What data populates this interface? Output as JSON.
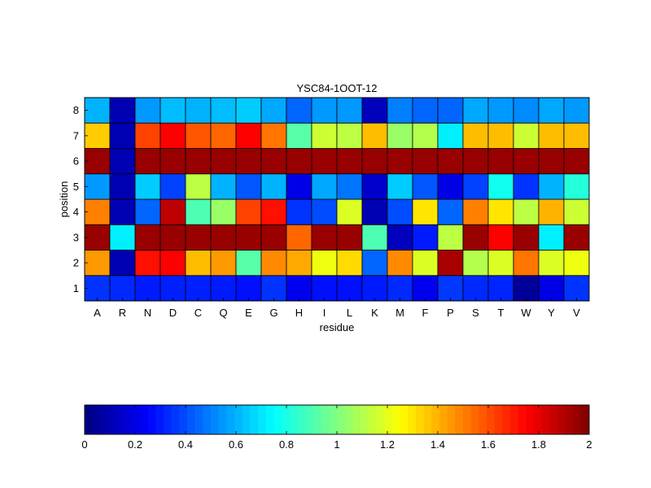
{
  "chart_data": {
    "type": "heatmap",
    "title": "YSC84-1OOT-12",
    "xlabel": "residue",
    "ylabel": "position",
    "x_categories": [
      "A",
      "R",
      "N",
      "D",
      "C",
      "Q",
      "E",
      "G",
      "H",
      "I",
      "L",
      "K",
      "M",
      "F",
      "P",
      "S",
      "T",
      "W",
      "Y",
      "V"
    ],
    "y_categories": [
      "1",
      "2",
      "3",
      "4",
      "5",
      "6",
      "7",
      "8"
    ],
    "colormap": "jet",
    "color_range": [
      0,
      2
    ],
    "colorbar": {
      "ticks": [
        0,
        0.2,
        0.4,
        0.6,
        0.8,
        1,
        1.2,
        1.4,
        1.6,
        1.8,
        2
      ],
      "tick_labels": [
        "0",
        "0.2",
        "0.4",
        "0.6",
        "0.8",
        "1",
        "1.2",
        "1.4",
        "1.6",
        "1.8",
        "2"
      ],
      "placement": "bottom"
    },
    "values": [
      [
        0.35,
        0.33,
        0.3,
        0.31,
        0.31,
        0.3,
        0.28,
        0.35,
        0.22,
        0.28,
        0.28,
        0.3,
        0.33,
        0.22,
        0.36,
        0.33,
        0.32,
        0.05,
        0.2,
        0.35
      ],
      [
        1.45,
        0.1,
        1.72,
        1.75,
        1.38,
        1.45,
        0.92,
        1.48,
        1.42,
        1.22,
        1.32,
        0.45,
        1.48,
        1.18,
        1.92,
        1.1,
        1.18,
        1.52,
        1.18,
        1.22
      ],
      [
        1.95,
        0.72,
        1.95,
        1.95,
        1.95,
        1.95,
        1.95,
        1.95,
        1.55,
        1.95,
        1.95,
        0.9,
        0.12,
        0.3,
        1.12,
        1.95,
        1.75,
        1.95,
        0.72,
        1.95
      ],
      [
        1.5,
        0.1,
        0.45,
        1.88,
        0.9,
        1.05,
        1.62,
        1.72,
        0.35,
        0.4,
        1.18,
        0.1,
        0.4,
        1.3,
        0.45,
        1.5,
        1.3,
        1.12,
        1.4,
        1.15
      ],
      [
        0.55,
        0.1,
        0.65,
        0.38,
        1.12,
        0.6,
        0.42,
        0.6,
        0.2,
        0.58,
        0.48,
        0.15,
        0.65,
        0.42,
        0.2,
        0.38,
        0.78,
        0.35,
        0.6,
        0.82
      ],
      [
        1.95,
        0.1,
        1.95,
        1.95,
        1.95,
        1.95,
        1.95,
        1.95,
        1.95,
        1.95,
        1.95,
        1.95,
        1.95,
        1.95,
        1.95,
        1.95,
        1.95,
        1.95,
        1.95,
        1.95
      ],
      [
        1.35,
        0.1,
        1.62,
        1.75,
        1.58,
        1.55,
        1.75,
        1.52,
        0.92,
        1.15,
        1.12,
        1.38,
        1.05,
        1.1,
        0.72,
        1.38,
        1.38,
        1.15,
        1.38,
        1.38
      ],
      [
        0.6,
        0.1,
        0.55,
        0.62,
        0.6,
        0.62,
        0.65,
        0.58,
        0.45,
        0.55,
        0.55,
        0.12,
        0.5,
        0.45,
        0.45,
        0.58,
        0.55,
        0.52,
        0.58,
        0.55
      ]
    ]
  }
}
